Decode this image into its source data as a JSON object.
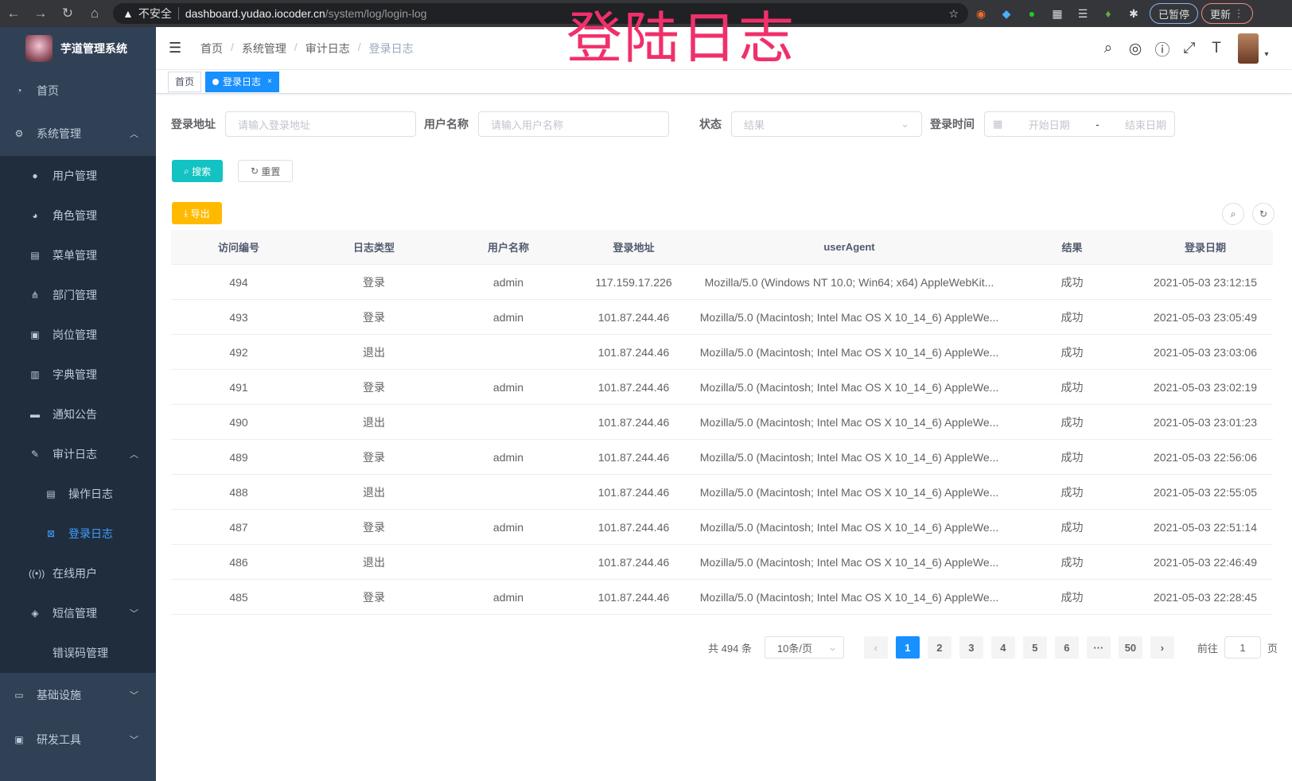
{
  "browser": {
    "security": "不安全",
    "host": "dashboard.yudao.iocoder.cn",
    "path": "/system/log/login-log",
    "paused": "已暂停",
    "update": "更新"
  },
  "overlay_title": "登陆日志",
  "sidebar": {
    "title": "芋道管理系统",
    "items": [
      {
        "label": "首页",
        "icon": "dashboard-icon",
        "level": 0
      },
      {
        "label": "系统管理",
        "icon": "gear-icon",
        "level": 0,
        "arrow": "up"
      },
      {
        "label": "用户管理",
        "icon": "user-icon",
        "level": 1
      },
      {
        "label": "角色管理",
        "icon": "peoples-icon",
        "level": 1
      },
      {
        "label": "菜单管理",
        "icon": "tree-table-icon",
        "level": 1
      },
      {
        "label": "部门管理",
        "icon": "tree-icon",
        "level": 1
      },
      {
        "label": "岗位管理",
        "icon": "post-icon",
        "level": 1
      },
      {
        "label": "字典管理",
        "icon": "dict-icon",
        "level": 1
      },
      {
        "label": "通知公告",
        "icon": "message-icon",
        "level": 1
      },
      {
        "label": "审计日志",
        "icon": "log-icon",
        "level": 1,
        "arrow": "up"
      },
      {
        "label": "操作日志",
        "icon": "form-icon",
        "level": 2
      },
      {
        "label": "登录日志",
        "icon": "logininfor-icon",
        "level": 2,
        "active": true
      },
      {
        "label": "在线用户",
        "icon": "online-icon",
        "level": 1
      },
      {
        "label": "短信管理",
        "icon": "shield-icon",
        "level": 1,
        "arrow": "down"
      },
      {
        "label": "错误码管理",
        "icon": "code-icon",
        "level": 1
      },
      {
        "label": "基础设施",
        "icon": "monitor-icon",
        "level": 0,
        "arrow": "down"
      },
      {
        "label": "研发工具",
        "icon": "tool-icon",
        "level": 0,
        "arrow": "down"
      }
    ]
  },
  "breadcrumb": [
    "首页",
    "系统管理",
    "审计日志",
    "登录日志"
  ],
  "tags": [
    {
      "label": "首页"
    },
    {
      "label": "登录日志",
      "active": true
    }
  ],
  "form": {
    "address_label": "登录地址",
    "address_placeholder": "请输入登录地址",
    "username_label": "用户名称",
    "username_placeholder": "请输入用户名称",
    "status_label": "状态",
    "status_placeholder": "结果",
    "time_label": "登录时间",
    "start_placeholder": "开始日期",
    "end_placeholder": "结束日期",
    "range_sep": "-",
    "search": "搜索",
    "reset": "重置",
    "export": "导出"
  },
  "colors": {
    "sidebar": "#304156",
    "primary": "#1890ff",
    "search": "#13c2c2",
    "export": "#ffba00"
  },
  "table": {
    "columns": [
      "访问编号",
      "日志类型",
      "用户名称",
      "登录地址",
      "userAgent",
      "结果",
      "登录日期"
    ],
    "rows": [
      [
        "494",
        "登录",
        "admin",
        "117.159.17.226",
        "Mozilla/5.0 (Windows NT 10.0; Win64; x64) AppleWebKit...",
        "成功",
        "2021-05-03 23:12:15"
      ],
      [
        "493",
        "登录",
        "admin",
        "101.87.244.46",
        "Mozilla/5.0 (Macintosh; Intel Mac OS X 10_14_6) AppleWe...",
        "成功",
        "2021-05-03 23:05:49"
      ],
      [
        "492",
        "退出",
        "",
        "101.87.244.46",
        "Mozilla/5.0 (Macintosh; Intel Mac OS X 10_14_6) AppleWe...",
        "成功",
        "2021-05-03 23:03:06"
      ],
      [
        "491",
        "登录",
        "admin",
        "101.87.244.46",
        "Mozilla/5.0 (Macintosh; Intel Mac OS X 10_14_6) AppleWe...",
        "成功",
        "2021-05-03 23:02:19"
      ],
      [
        "490",
        "退出",
        "",
        "101.87.244.46",
        "Mozilla/5.0 (Macintosh; Intel Mac OS X 10_14_6) AppleWe...",
        "成功",
        "2021-05-03 23:01:23"
      ],
      [
        "489",
        "登录",
        "admin",
        "101.87.244.46",
        "Mozilla/5.0 (Macintosh; Intel Mac OS X 10_14_6) AppleWe...",
        "成功",
        "2021-05-03 22:56:06"
      ],
      [
        "488",
        "退出",
        "",
        "101.87.244.46",
        "Mozilla/5.0 (Macintosh; Intel Mac OS X 10_14_6) AppleWe...",
        "成功",
        "2021-05-03 22:55:05"
      ],
      [
        "487",
        "登录",
        "admin",
        "101.87.244.46",
        "Mozilla/5.0 (Macintosh; Intel Mac OS X 10_14_6) AppleWe...",
        "成功",
        "2021-05-03 22:51:14"
      ],
      [
        "486",
        "退出",
        "",
        "101.87.244.46",
        "Mozilla/5.0 (Macintosh; Intel Mac OS X 10_14_6) AppleWe...",
        "成功",
        "2021-05-03 22:46:49"
      ],
      [
        "485",
        "登录",
        "admin",
        "101.87.244.46",
        "Mozilla/5.0 (Macintosh; Intel Mac OS X 10_14_6) AppleWe...",
        "成功",
        "2021-05-03 22:28:45"
      ]
    ]
  },
  "pagination": {
    "total": "共 494 条",
    "page_size": "10条/页",
    "pages": [
      "1",
      "2",
      "3",
      "4",
      "5",
      "6",
      "···",
      "50"
    ],
    "current": "1",
    "goto_label": "前往",
    "goto_value": "1",
    "goto_suffix": "页"
  }
}
